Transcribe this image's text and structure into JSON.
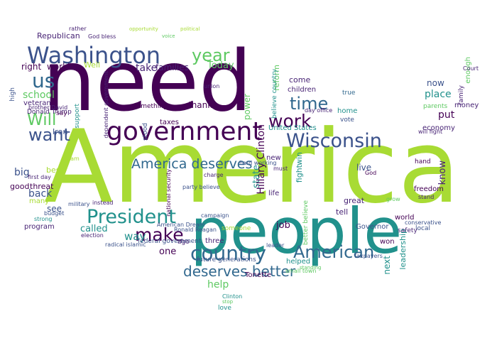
{
  "palette": {
    "background": "#ffffff",
    "colors": [
      "#440154",
      "#482475",
      "#3b528b",
      "#31688e",
      "#21918c",
      "#2db27d",
      "#5ec962",
      "#a8db34"
    ]
  },
  "words": {
    "need": "need",
    "america": "America",
    "people": "people",
    "government": "government",
    "washington": "Washington",
    "wisconsin": "Wisconsin",
    "president": "President",
    "country": "country",
    "american": "American",
    "america_deserves": "America deserves",
    "deserves_better": "deserves better",
    "make": "make",
    "work": "work",
    "time": "time",
    "year": "year",
    "us": "us",
    "will": "Will",
    "want": "want",
    "today": "Today",
    "take": "take",
    "families": "families",
    "right": "right",
    "working": "working",
    "republican": "Republican",
    "school": "school",
    "veteran": "veteran",
    "iran": "Iran",
    "big": "big",
    "best": "best",
    "good": "good",
    "threat": "threat",
    "back": "back",
    "many": "many",
    "program": "program",
    "see": "see",
    "way": "way",
    "called": "called",
    "one": "one",
    "help": "help",
    "job": "job",
    "state": "state",
    "hillary_clinton": "Hillary Clinton",
    "reform": "reform",
    "power": "power",
    "thank": "thank",
    "something": "something",
    "taxes": "taxes",
    "come": "come",
    "children": "children",
    "united_states": "United States",
    "place": "place",
    "now": "now",
    "put": "put",
    "know": "know",
    "live": "live",
    "great": "great",
    "tell": "tell",
    "governor": "Governor",
    "next": "next",
    "leadership": "leadership",
    "money": "money",
    "economy": "economy",
    "freedom": "freedom",
    "true": "true",
    "home": "home",
    "vote": "vote",
    "world": "world",
    "local": "local",
    "safety": "safety",
    "won": "won",
    "tonette": "Tonette",
    "helped": "helped",
    "love": "love",
    "future_generations": "future generations",
    "federal_government": "federal government",
    "american_dream": "American Dream",
    "ronald_reagan": "Ronald Reagan",
    "national_security": "national security",
    "donald_trump": "Donald Trump",
    "first_day": "first day",
    "brother_david": "brother David",
    "military": "military",
    "god_bless": "God bless",
    "well": "Well",
    "small_town": "small town",
    "hard_working": "hard working",
    "party_believe": "party believe",
    "believe_country": "believe country",
    "better_believe": "better believe",
    "fight": "fight",
    "win": "win",
    "new": "new",
    "life": "life",
    "enough": "enough",
    "family": "family",
    "day_office": "day office",
    "parents": "parents",
    "will_fight": "will fight",
    "three": "three",
    "stood": "stood",
    "support": "support",
    "someone": "someone",
    "campaign": "campaign",
    "ago": "ago",
    "dependent_government": "dependent government",
    "high": "high",
    "say": "say",
    "election": "election",
    "instead": "instead",
    "court": "Court",
    "conservative": "conservative",
    "taxpayers": "taxpayers",
    "stand": "stand",
    "hand": "hand",
    "grow": "grow",
    "must": "must",
    "union": "union",
    "charge": "charge",
    "radical_islamic": "radical islamic",
    "rather": "rather",
    "clinton": "Clinton",
    "stop": "stop",
    "standing": "standing",
    "leader": "leader",
    "god": "God",
    "budget": "budget",
    "strong": "strong",
    "dream": "dream",
    "opportunity": "opportunity",
    "political": "political",
    "voice": "voice"
  }
}
